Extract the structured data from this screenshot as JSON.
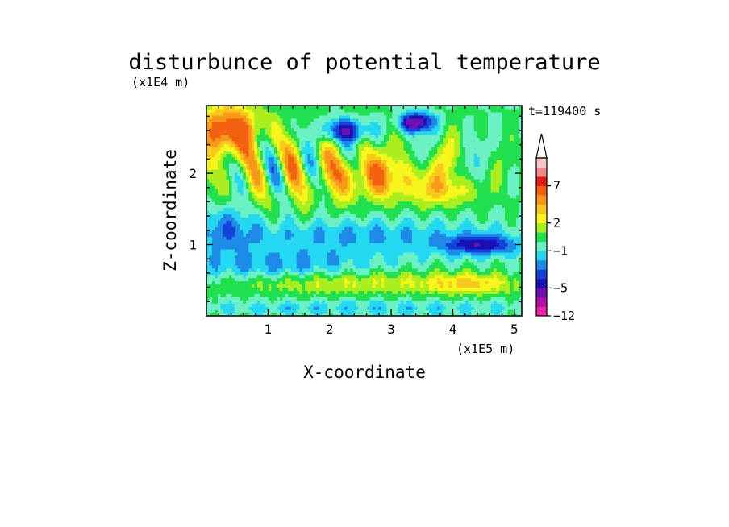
{
  "chart_data": {
    "type": "heatmap",
    "title": "disturbunce of potential temperature",
    "xlabel": "X-coordinate",
    "ylabel": "Z-coordinate",
    "x_unit": "(x1E5 m)",
    "y_unit": "(x1E4 m)",
    "time_label": "t=119400 s",
    "xlim": [
      0,
      5.12
    ],
    "ylim": [
      0,
      2.95
    ],
    "x_ticks": [
      "1",
      "2",
      "3",
      "4",
      "5"
    ],
    "x_tick_values": [
      1,
      2,
      3,
      4,
      5
    ],
    "y_ticks": [
      "1",
      "2"
    ],
    "y_tick_values": [
      1,
      2
    ],
    "colorbar": {
      "labels": [
        "-12",
        "-5",
        "-1",
        "2",
        "7"
      ],
      "label_values": [
        -12,
        -5,
        -1,
        2,
        7
      ],
      "levels": [
        -12,
        -9,
        -7,
        -5,
        -4,
        -3,
        -2,
        -1,
        0,
        1,
        2,
        3,
        4,
        5,
        7,
        9,
        11
      ],
      "colors": [
        "#ee1fa8",
        "#b40fa8",
        "#7010b0",
        "#1a10b4",
        "#1443dc",
        "#1f8ae8",
        "#24d8f2",
        "#6af0c2",
        "#20e050",
        "#aaee20",
        "#f6f61c",
        "#f8c81c",
        "#f89818",
        "#f36010",
        "#e61c14",
        "#f08a88",
        "#f8c6c6"
      ],
      "extend_max": true
    }
  }
}
